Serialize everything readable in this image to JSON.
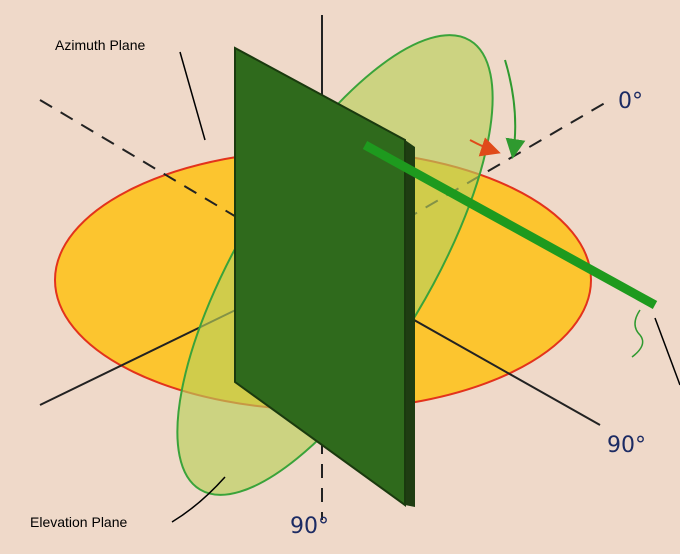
{
  "planes": {
    "azimuth": "Azimuth Plane",
    "elevation": "Elevation Plane"
  },
  "angles": {
    "front": "0°",
    "side": "90°",
    "bottom": "90°"
  }
}
